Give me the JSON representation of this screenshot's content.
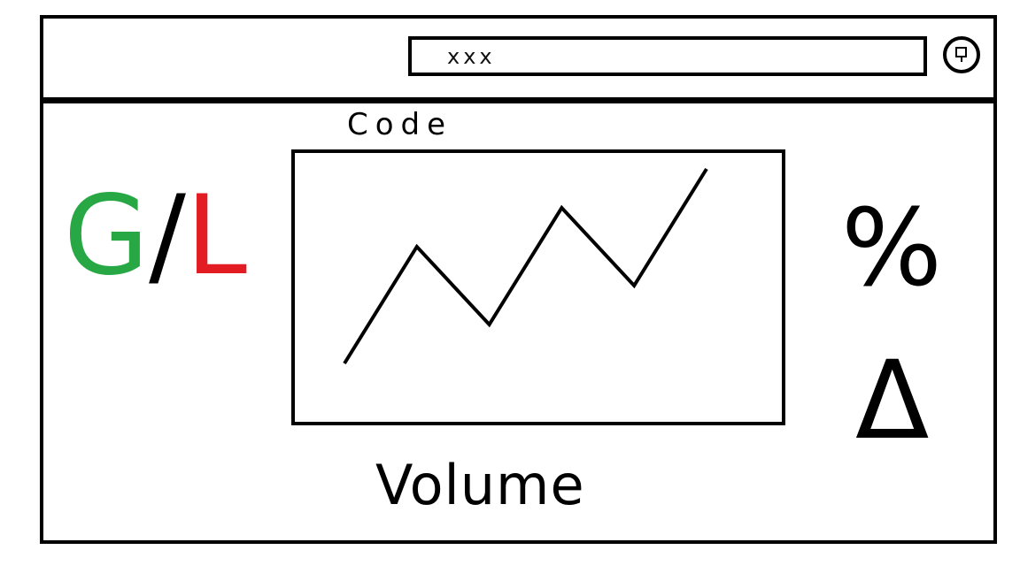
{
  "header": {
    "search": {
      "value": "xxx",
      "placeholder": "xxx"
    },
    "search_button_icon": "search-icon"
  },
  "main": {
    "chart_title": "Code",
    "volume_label": "Volume",
    "gain_loss": {
      "g": "G",
      "slash": "/",
      "l": "L",
      "g_color": "#27a844",
      "l_color": "#e31b23"
    },
    "percent_label": "%",
    "delta_label": "Δ"
  },
  "chart_data": {
    "type": "line",
    "title": "Code",
    "xlabel": "Volume",
    "ylabel": "",
    "series": [
      {
        "x": [
          0,
          1,
          2,
          3,
          4,
          5
        ],
        "values": [
          0,
          3,
          1,
          4,
          2,
          5
        ]
      }
    ]
  }
}
